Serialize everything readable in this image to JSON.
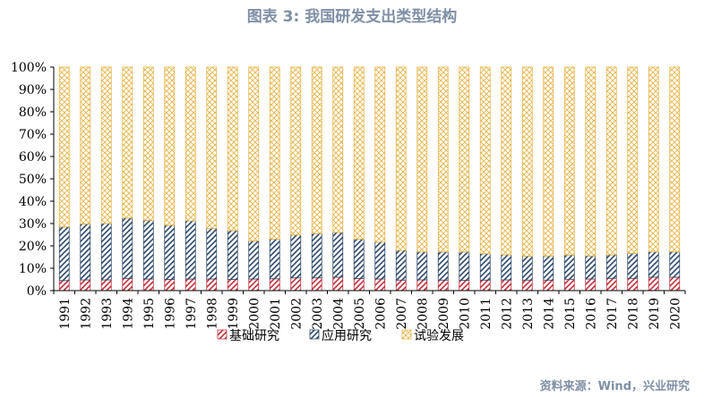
{
  "chart_data": {
    "type": "bar",
    "stacked": "percent",
    "title": "图表 3:  我国研发支出类型结构",
    "source": "资料来源：Wind，兴业研究",
    "categories": [
      "1991",
      "1992",
      "1993",
      "1994",
      "1995",
      "1996",
      "1997",
      "1998",
      "1999",
      "2000",
      "2001",
      "2002",
      "2003",
      "2004",
      "2005",
      "2006",
      "2007",
      "2008",
      "2009",
      "2010",
      "2011",
      "2012",
      "2013",
      "2014",
      "2015",
      "2016",
      "2017",
      "2018",
      "2019",
      "2020"
    ],
    "series": [
      {
        "name": "基础研究",
        "color": "#C0303B",
        "pattern": "diagonal-hatch",
        "values": [
          4.5,
          4.8,
          4.8,
          5.5,
          5.2,
          5.0,
          5.2,
          5.2,
          5.0,
          5.2,
          5.3,
          5.7,
          5.7,
          6.0,
          5.4,
          5.2,
          4.7,
          4.8,
          4.7,
          4.6,
          4.7,
          4.8,
          4.7,
          4.7,
          5.1,
          5.2,
          5.5,
          5.5,
          6.0,
          6.0
        ]
      },
      {
        "name": "应用研究",
        "color": "#2E4A6B",
        "pattern": "diagonal-hatch",
        "values": [
          24.0,
          25.0,
          25.2,
          27.0,
          26.2,
          24.2,
          26.0,
          22.6,
          21.8,
          17.0,
          17.7,
          19.2,
          19.8,
          20.0,
          17.6,
          16.5,
          13.3,
          12.5,
          12.6,
          12.7,
          11.8,
          11.2,
          10.7,
          10.8,
          10.8,
          10.3,
          10.5,
          11.1,
          11.3,
          11.3
        ]
      },
      {
        "name": "试验发展",
        "color": "#E8B54A",
        "pattern": "crosshatch",
        "values": [
          71.5,
          70.2,
          70.0,
          67.5,
          68.6,
          70.8,
          68.8,
          72.2,
          73.2,
          77.8,
          77.0,
          75.1,
          74.5,
          74.0,
          77.0,
          78.3,
          82.0,
          82.7,
          82.7,
          82.7,
          83.5,
          84.0,
          84.6,
          84.5,
          84.1,
          84.5,
          84.0,
          83.4,
          82.7,
          82.7
        ]
      }
    ],
    "y_ticks": [
      "0%",
      "10%",
      "20%",
      "30%",
      "40%",
      "50%",
      "60%",
      "70%",
      "80%",
      "90%",
      "100%"
    ],
    "ylim": [
      0,
      100
    ],
    "grid": false,
    "legend_position": "bottom"
  }
}
